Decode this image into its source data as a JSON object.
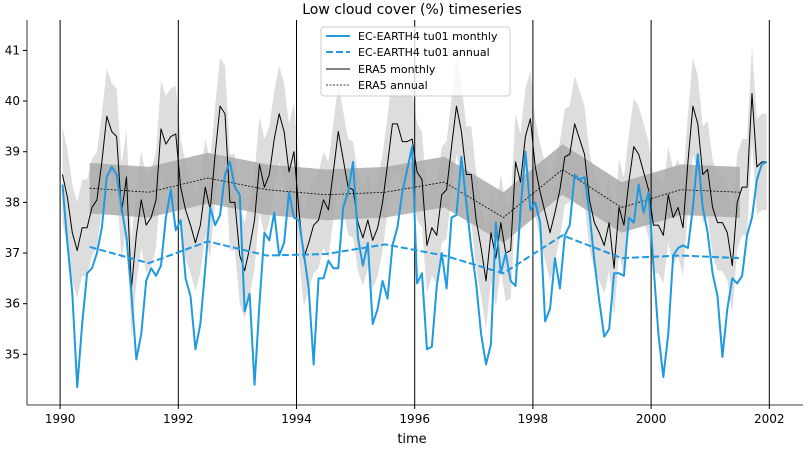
{
  "chart_data": {
    "type": "line",
    "title": "Low cloud cover (%) timeseries",
    "xlabel": "time",
    "ylabel": "",
    "xlim": [
      1989.44,
      2002.57
    ],
    "ylim": [
      34.0,
      41.6
    ],
    "xticks": [
      1990,
      1992,
      1994,
      1996,
      1998,
      2000,
      2002
    ],
    "yticks": [
      35,
      36,
      37,
      38,
      39,
      40,
      41
    ],
    "vertical_lines": [
      1990,
      1992,
      1994,
      1996,
      1998,
      2000,
      2002
    ],
    "legend_placement": "top-center",
    "colors": {
      "ec_earth": "#1f9ae0",
      "era5": "#000000",
      "monthly_band": "#dddddd",
      "annual_band": "#aaaaaa"
    },
    "monthly_start": 1990.04,
    "monthly_spread": 0.95,
    "annual_spread": 0.5,
    "annual_x": [
      1990.5,
      1991.5,
      1992.5,
      1993.5,
      1994.5,
      1995.5,
      1996.5,
      1997.5,
      1998.5,
      1999.5,
      2000.5,
      2001.5
    ],
    "series": [
      {
        "name": "EC-EARTH4 tu01 monthly",
        "style": "solid",
        "color": "#1f9ae0",
        "values": [
          38.35,
          37.2,
          36.2,
          34.35,
          35.6,
          36.6,
          36.7,
          37.0,
          37.5,
          38.5,
          38.7,
          38.55,
          37.9,
          37.3,
          36.2,
          34.9,
          35.4,
          36.45,
          36.7,
          36.55,
          36.75,
          37.7,
          38.25,
          37.45,
          37.65,
          36.5,
          36.15,
          35.1,
          35.6,
          36.7,
          37.9,
          37.55,
          37.75,
          38.55,
          38.8,
          38.3,
          38.15,
          35.85,
          36.2,
          34.4,
          36.0,
          37.4,
          37.25,
          37.8,
          36.95,
          37.2,
          38.2,
          37.7,
          37.65,
          37.0,
          36.3,
          34.8,
          36.5,
          36.5,
          36.85,
          36.7,
          36.7,
          37.9,
          38.2,
          38.8,
          37.3,
          36.75,
          37.2,
          35.6,
          35.9,
          36.45,
          36.1,
          37.15,
          37.5,
          38.2,
          38.65,
          39.1,
          36.4,
          36.6,
          35.1,
          35.15,
          36.35,
          37.0,
          36.3,
          37.7,
          37.75,
          38.9,
          38.0,
          37.1,
          36.4,
          35.4,
          34.8,
          35.2,
          37.6,
          36.6,
          37.0,
          36.45,
          36.35,
          37.85,
          39.0,
          37.85,
          38.0,
          37.6,
          35.65,
          35.9,
          36.9,
          36.3,
          37.35,
          37.55,
          38.55,
          38.45,
          38.5,
          37.8,
          36.85,
          36.05,
          35.35,
          35.5,
          36.6,
          36.6,
          36.55,
          37.7,
          37.6,
          38.35,
          37.8,
          38.2,
          36.75,
          35.4,
          34.55,
          35.4,
          36.95,
          37.1,
          37.15,
          37.1,
          37.9,
          38.95,
          37.9,
          37.4,
          36.6,
          36.15,
          34.95,
          35.9,
          36.5,
          36.4,
          36.55,
          37.35,
          37.7,
          38.45,
          38.75,
          38.8
        ]
      },
      {
        "name": "EC-EARTH4 tu01 annual",
        "style": "dashed",
        "color": "#1f9ae0",
        "values": [
          37.12,
          36.8,
          37.23,
          36.95,
          36.98,
          37.17,
          36.95,
          36.6,
          37.35,
          36.9,
          36.95,
          36.9
        ]
      },
      {
        "name": "ERA5 monthly",
        "style": "solid",
        "color": "#000000",
        "values": [
          38.55,
          38.1,
          37.4,
          37.05,
          37.5,
          37.5,
          37.9,
          38.05,
          38.8,
          39.7,
          39.4,
          39.3,
          37.8,
          38.5,
          36.3,
          37.35,
          38.05,
          37.55,
          37.7,
          38.05,
          39.45,
          39.15,
          39.3,
          39.35,
          38.3,
          37.85,
          37.55,
          37.2,
          37.55,
          38.3,
          37.85,
          38.95,
          39.9,
          39.75,
          38.0,
          38.0,
          36.95,
          36.65,
          37.1,
          37.65,
          38.75,
          38.3,
          38.55,
          39.25,
          39.75,
          39.4,
          38.6,
          39.0,
          37.85,
          36.9,
          37.2,
          37.55,
          37.65,
          38.05,
          37.85,
          38.6,
          39.4,
          38.85,
          38.3,
          38.25,
          37.6,
          37.3,
          37.65,
          37.25,
          37.5,
          38.0,
          38.75,
          39.55,
          39.55,
          39.2,
          39.2,
          39.25,
          38.6,
          38.45,
          37.15,
          37.5,
          37.35,
          38.15,
          38.25,
          39.1,
          39.9,
          39.4,
          38.55,
          38.55,
          37.65,
          37.1,
          36.45,
          37.4,
          36.9,
          37.6,
          37.0,
          37.05,
          38.8,
          38.4,
          39.3,
          39.65,
          38.7,
          38.2,
          37.8,
          37.4,
          37.8,
          38.25,
          38.9,
          38.95,
          39.55,
          39.25,
          38.95,
          38.05,
          37.6,
          37.4,
          37.15,
          37.6,
          36.7,
          37.9,
          37.55,
          38.4,
          39.1,
          38.95,
          38.6,
          38.25,
          37.55,
          37.55,
          37.35,
          38.15,
          37.7,
          37.9,
          37.5,
          38.8,
          39.9,
          39.55,
          38.55,
          38.65,
          37.9,
          37.6,
          37.6,
          37.4,
          36.75,
          38.0,
          38.3,
          38.3,
          40.15,
          38.7,
          38.8,
          38.8
        ]
      },
      {
        "name": "ERA5 annual",
        "style": "dotted",
        "color": "#000000",
        "values": [
          38.28,
          38.2,
          38.48,
          38.25,
          38.15,
          38.2,
          38.4,
          37.7,
          38.65,
          37.9,
          38.25,
          38.2
        ]
      }
    ]
  }
}
